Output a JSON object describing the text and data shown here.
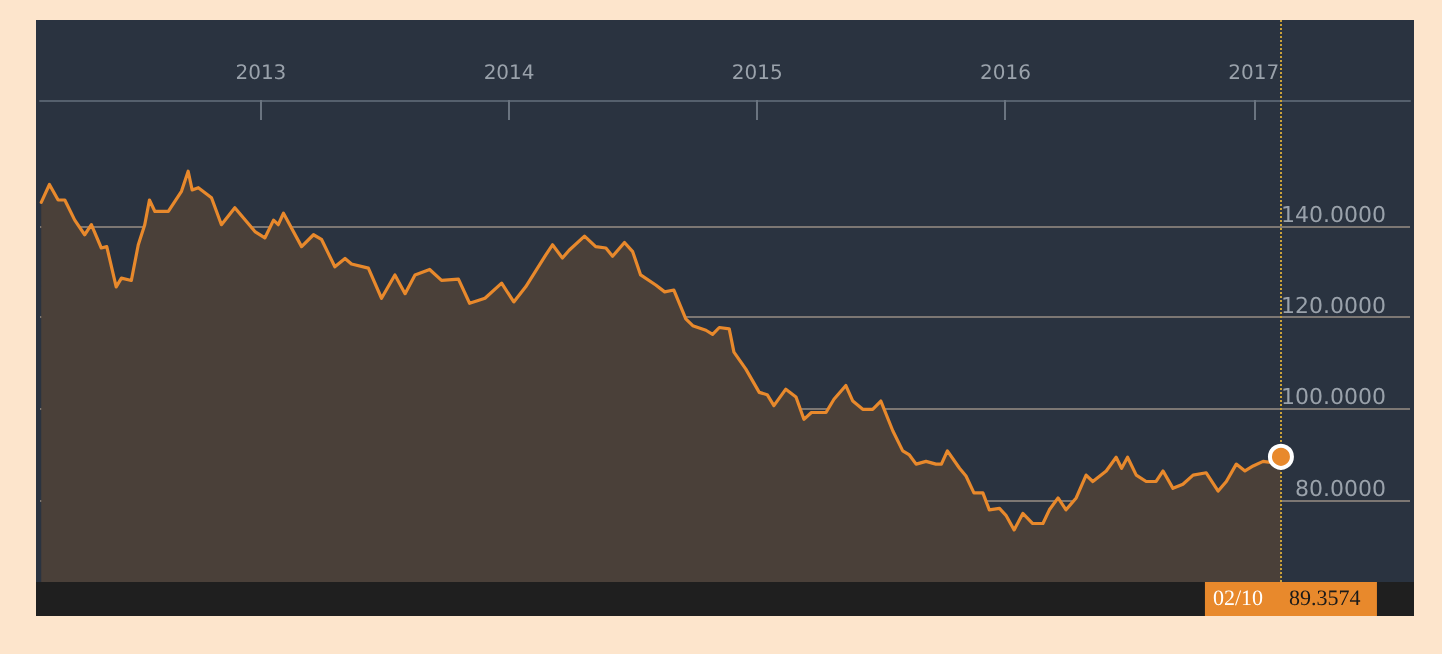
{
  "chart_data": {
    "type": "area",
    "x": [
      2012.115,
      2012.148,
      2012.183,
      2012.21,
      2012.25,
      2012.29,
      2012.317,
      2012.357,
      2012.379,
      2012.417,
      2012.438,
      2012.478,
      2012.506,
      2012.532,
      2012.551,
      2012.573,
      2012.627,
      2012.68,
      2012.707,
      2012.723,
      2012.748,
      2012.801,
      2012.841,
      2012.895,
      2012.976,
      2013.016,
      2013.051,
      2013.07,
      2013.091,
      2013.164,
      2013.212,
      2013.244,
      2013.298,
      2013.339,
      2013.365,
      2013.433,
      2013.486,
      2013.54,
      2013.581,
      2013.621,
      2013.68,
      2013.728,
      2013.796,
      2013.841,
      2013.903,
      2013.97,
      2014.019,
      2014.067,
      2014.148,
      2014.175,
      2014.215,
      2014.242,
      2014.304,
      2014.349,
      2014.39,
      2014.417,
      2014.465,
      2014.498,
      2014.53,
      2014.591,
      2014.627,
      2014.664,
      2014.712,
      2014.74,
      2014.793,
      2014.82,
      2014.847,
      2014.887,
      2014.906,
      2014.954,
      2015.008,
      2015.04,
      2015.067,
      2015.115,
      2015.156,
      2015.188,
      2015.218,
      2015.277,
      2015.309,
      2015.357,
      2015.385,
      2015.425,
      2015.465,
      2015.498,
      2015.546,
      2015.586,
      2015.613,
      2015.64,
      2015.68,
      2015.72,
      2015.742,
      2015.766,
      2015.815,
      2015.841,
      2015.873,
      2015.909,
      2015.935,
      2015.976,
      2016.002,
      2016.035,
      2016.07,
      2016.11,
      2016.151,
      2016.177,
      2016.212,
      2016.244,
      2016.285,
      2016.325,
      2016.352,
      2016.406,
      2016.446,
      2016.468,
      2016.492,
      2016.527,
      2016.567,
      2016.607,
      2016.635,
      2016.675,
      2016.715,
      2016.756,
      2016.809,
      2016.857,
      2016.89,
      2016.93,
      2016.965,
      2016.998,
      2017.038,
      2017.078,
      2017.11
    ],
    "series": [
      {
        "color": "#e8892c",
        "values": [
          145.1,
          149.0,
          145.6,
          145.6,
          141.2,
          138.0,
          140.2,
          135.1,
          135.4,
          126.6,
          128.5,
          128.0,
          135.8,
          140.2,
          145.6,
          143.1,
          143.1,
          147.5,
          151.9,
          147.8,
          148.3,
          146.1,
          140.2,
          143.9,
          138.7,
          137.3,
          141.2,
          140.2,
          142.7,
          135.4,
          138.0,
          137.0,
          131.0,
          132.8,
          131.6,
          130.7,
          124.1,
          129.2,
          125.1,
          129.2,
          130.4,
          128.0,
          128.3,
          123.0,
          124.1,
          127.4,
          123.3,
          126.6,
          133.6,
          135.8,
          132.9,
          134.6,
          137.7,
          135.4,
          135.1,
          133.3,
          136.3,
          134.3,
          129.2,
          127.0,
          125.5,
          125.9,
          119.6,
          118.1,
          117.1,
          116.2,
          117.7,
          117.4,
          112.3,
          108.6,
          103.5,
          103.0,
          100.6,
          104.2,
          102.5,
          97.6,
          99.1,
          99.1,
          102.0,
          105.0,
          101.6,
          99.8,
          99.8,
          101.6,
          95.1,
          90.7,
          89.8,
          87.8,
          88.4,
          87.8,
          87.8,
          90.7,
          86.9,
          85.2,
          81.5,
          81.5,
          77.8,
          78.1,
          76.6,
          73.4,
          77.0,
          74.8,
          74.8,
          77.8,
          80.4,
          77.8,
          80.4,
          85.4,
          84.0,
          86.3,
          89.3,
          86.9,
          89.3,
          85.4,
          84.0,
          84.0,
          86.3,
          82.5,
          83.4,
          85.4,
          85.9,
          81.9,
          84.0,
          87.8,
          86.3,
          87.4,
          88.4,
          88.1,
          89.4
        ]
      }
    ],
    "xlim": [
      2012.11,
      2017.63
    ],
    "xticks": [
      2013,
      2014,
      2015,
      2016,
      2017
    ],
    "ylim": [
      62,
      185
    ],
    "yticks": [
      {
        "value": 80,
        "label": "80.0000"
      },
      {
        "value": 100,
        "label": "100.0000"
      },
      {
        "value": 120,
        "label": "120.0000"
      },
      {
        "value": 140,
        "label": "140.0000"
      }
    ],
    "grid": "y",
    "marker": "none",
    "ref_lines": [
      {
        "axis": "x",
        "value": 2017.11,
        "color": "#c9a23a",
        "line_style": "dotted"
      }
    ],
    "annotations": [
      "02/10",
      "89.3574"
    ]
  }
}
